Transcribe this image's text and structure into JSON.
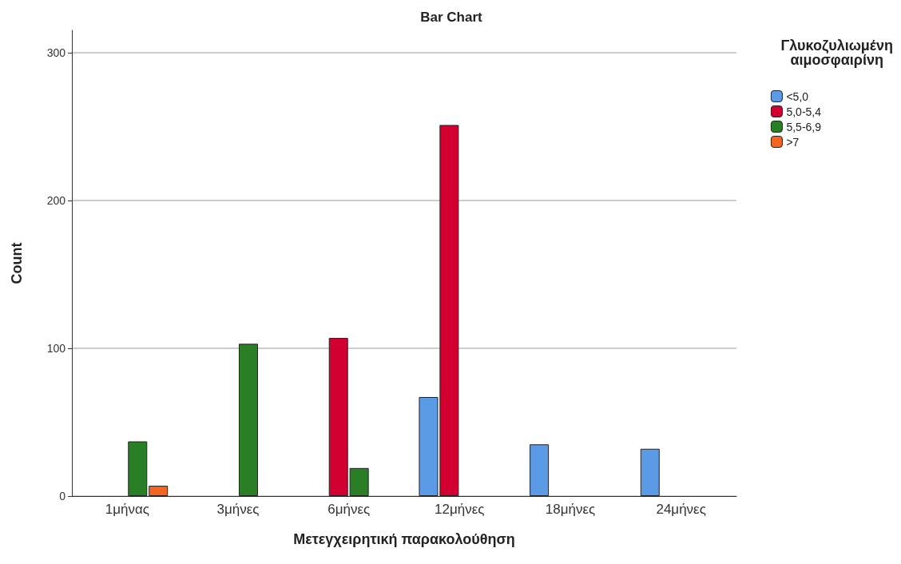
{
  "chart_data": {
    "type": "bar",
    "title": "Bar Chart",
    "xlabel": "Μετεγχειρητική παρακολούθηση",
    "ylabel": "Count",
    "legend_title": "Γλυκοζυλιωμένη\nαιμοσφαιρίνη",
    "categories": [
      "1μήνας",
      "3μήνες",
      "6μήνες",
      "12μήνες",
      "18μήνες",
      "24μήνες"
    ],
    "series": [
      {
        "name": "<5,0",
        "color": "#5b9be6",
        "values": [
          null,
          null,
          null,
          67,
          35,
          32
        ]
      },
      {
        "name": "5,0-5,4",
        "color": "#d20030",
        "values": [
          null,
          null,
          107,
          251,
          null,
          null
        ]
      },
      {
        "name": "5,5-6,9",
        "color": "#2a7f26",
        "values": [
          37,
          103,
          19,
          null,
          null,
          null
        ]
      },
      {
        "name": ">7",
        "color": "#f26522",
        "values": [
          7,
          null,
          null,
          null,
          null,
          null
        ]
      }
    ],
    "ylim": [
      0,
      315
    ],
    "yticks": [
      0,
      100,
      200,
      300
    ],
    "grid": "y",
    "legend": "top right"
  }
}
